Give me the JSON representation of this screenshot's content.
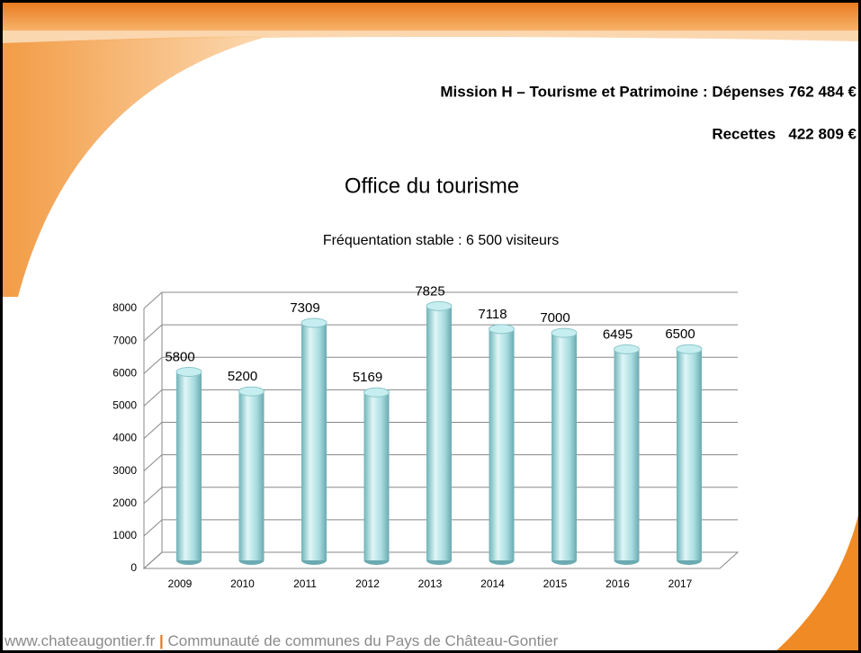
{
  "header": {
    "mission": "Mission H – Tourisme et Patrimoine : Dépenses 762 484 €",
    "recettes": "Recettes   422 809 €"
  },
  "chart_data": {
    "type": "bar",
    "title": "Office du tourisme",
    "subtitle": "Fréquentation stable : 6 500 visiteurs",
    "categories": [
      "2009",
      "2010",
      "2011",
      "2012",
      "2013",
      "2014",
      "2015",
      "2016",
      "2017"
    ],
    "values": [
      5800,
      5200,
      7309,
      5169,
      7825,
      7118,
      7000,
      6495,
      6500
    ],
    "color": "#a9dde0",
    "ylim": [
      0,
      8000
    ],
    "yticks": [
      0,
      1000,
      2000,
      3000,
      4000,
      5000,
      6000,
      7000,
      8000
    ],
    "grid": true
  },
  "footer": {
    "site": "www.chateaugontier.fr",
    "separator": "|",
    "org": "Communauté de communes du Pays de Château-Gontier"
  }
}
